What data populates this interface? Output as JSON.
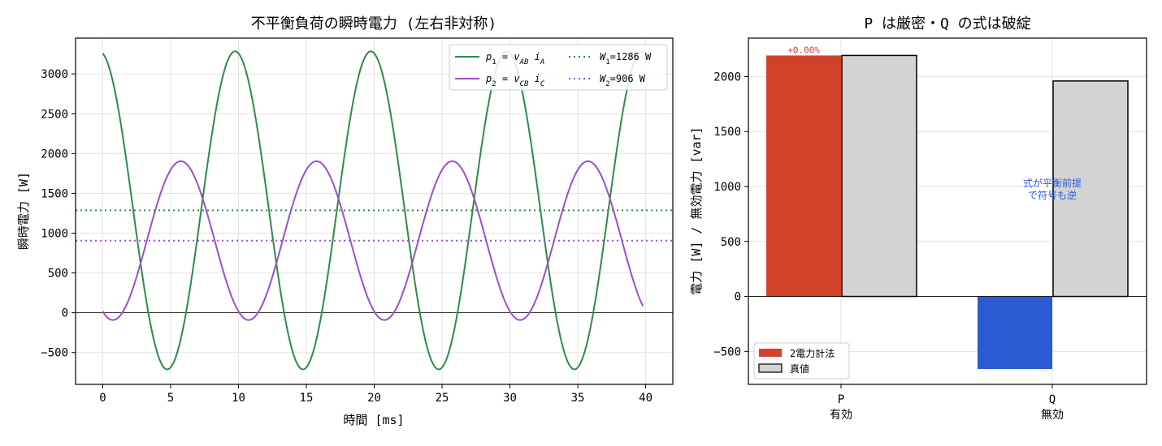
{
  "chart_data": [
    {
      "type": "line",
      "title": "不平衡負荷の瞬時電力 (左右非対称)",
      "xlabel": "時間 [ms]",
      "ylabel": "瞬時電力 [W]",
      "xlim": [
        -2,
        42
      ],
      "ylim": [
        -900,
        3450
      ],
      "xticks": [
        0,
        5,
        10,
        15,
        20,
        25,
        30,
        35,
        40
      ],
      "yticks": [
        -500,
        0,
        500,
        1000,
        1500,
        2000,
        2500,
        3000
      ],
      "grid": true,
      "legend_position": "top-right",
      "series": [
        {
          "name": "p1 = vAB iA",
          "name_main": "p",
          "name_sub": "1",
          "name_eq": " = v",
          "name_sub2": "AB",
          "name_tail": " i",
          "name_sub3": "A",
          "color": "#2e8b4a",
          "style": "solid",
          "formula": {
            "mean": 1286,
            "amp": 1998,
            "period_ms": 10,
            "peak_ms": 9.75
          }
        },
        {
          "name": "p2 = vCB iC",
          "name_main": "p",
          "name_sub": "2",
          "name_eq": " = v",
          "name_sub2": "CB",
          "name_tail": " i",
          "name_sub3": "C",
          "color": "#9b4fcb",
          "style": "solid",
          "formula": {
            "mean": 906,
            "amp": 998,
            "period_ms": 10,
            "peak_ms": 5.75
          }
        },
        {
          "name": "W1=1286 W",
          "name_main": "W",
          "name_sub": "1",
          "name_tail": "=1286 W",
          "color": "#2e8b4a",
          "style": "dotted",
          "value": 1286
        },
        {
          "name": "W2=906 W",
          "name_main": "W",
          "name_sub": "2",
          "name_tail": "=906 W",
          "color": "#9b4fcb",
          "style": "dotted",
          "value": 906
        }
      ],
      "x_range_data": [
        0,
        39.8
      ]
    },
    {
      "type": "bar",
      "title": "P は厳密・Q の式は破綻",
      "ylabel": "電力 [W] / 無効電力 [var]",
      "categories": [
        "P\n有効",
        "Q\n無効"
      ],
      "category_lines": [
        [
          "P",
          "有効"
        ],
        [
          "Q",
          "無効"
        ]
      ],
      "ylim": [
        -800,
        2350
      ],
      "yticks": [
        -500,
        0,
        500,
        1000,
        1500,
        2000
      ],
      "grid": true,
      "legend_position": "bottom-left",
      "series": [
        {
          "name": "2電力計法",
          "values": [
            2192,
            -660
          ],
          "colors": [
            "#d2412a",
            "#2b5bd4"
          ]
        },
        {
          "name": "真値",
          "values": [
            2192,
            1960
          ],
          "color": "#d3d3d3"
        }
      ],
      "annotations": [
        {
          "text": "+0.00%",
          "color": "#d2412a"
        },
        {
          "text": "式が平衡前提",
          "color": "#2b5bd4"
        },
        {
          "text": "で符号も逆",
          "color": "#2b5bd4"
        }
      ]
    }
  ]
}
